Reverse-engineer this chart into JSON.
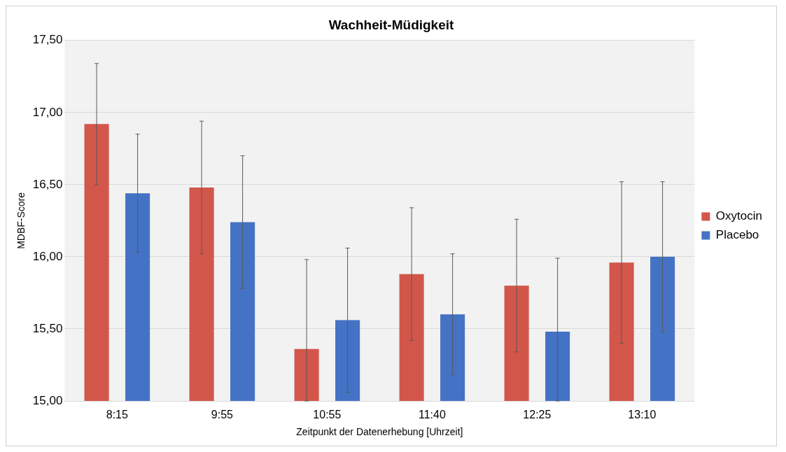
{
  "chart_data": {
    "type": "bar",
    "title": "Wachheit-Müdigkeit",
    "xlabel": "Zeitpunkt der Datenerhebung [Uhrzeit]",
    "ylabel": "MDBF-Score",
    "categories": [
      "8:15",
      "9:55",
      "10:55",
      "11:40",
      "12:25",
      "13:10"
    ],
    "series": [
      {
        "name": "Oxytocin",
        "color": "#d3564a",
        "values": [
          16.92,
          16.48,
          15.36,
          15.88,
          15.8,
          15.96
        ],
        "errors": [
          0.42,
          0.46,
          [
            15.0,
            15.98
          ],
          0.46,
          0.46,
          0.56
        ]
      },
      {
        "name": "Placebo",
        "color": "#4472c4",
        "values": [
          16.44,
          16.24,
          15.56,
          15.6,
          15.48,
          16.0
        ],
        "errors": [
          0.41,
          0.46,
          0.5,
          0.42,
          [
            15.0,
            15.99
          ],
          0.52
        ]
      }
    ],
    "ylim": [
      15,
      17.5
    ],
    "yticks": [
      {
        "value": 15,
        "label": "15,00"
      },
      {
        "value": 15.5,
        "label": "15,50"
      },
      {
        "value": 16,
        "label": "16,00"
      },
      {
        "value": 16.5,
        "label": "16,50"
      },
      {
        "value": 17,
        "label": "17,00"
      },
      {
        "value": 17.5,
        "label": "17,50"
      }
    ],
    "grid": "y",
    "legend": "right"
  }
}
